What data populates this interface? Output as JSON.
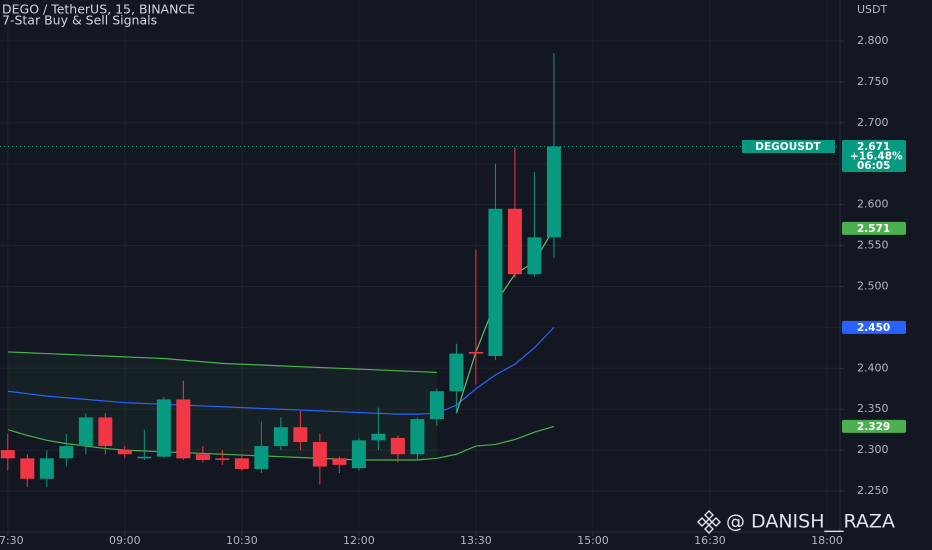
{
  "chart_data": {
    "type": "candlestick",
    "title": "DEGO / TetherUS, 15, BINANCE",
    "subtitle": "7-Star Buy & Sell Signals",
    "y_axis_label": "USDT",
    "watermark": "@ DANISH__RAZA",
    "x": [
      "07:30",
      "07:45",
      "08:00",
      "08:15",
      "08:30",
      "08:45",
      "09:00",
      "09:15",
      "09:30",
      "09:45",
      "10:00",
      "10:15",
      "10:30",
      "10:45",
      "11:00",
      "11:15",
      "11:30",
      "11:45",
      "12:00",
      "12:15",
      "12:30",
      "12:45",
      "13:00",
      "13:15",
      "13:30",
      "13:45",
      "14:00",
      "14:15",
      "14:30"
    ],
    "open": [
      2.3,
      2.29,
      2.265,
      2.29,
      2.305,
      2.34,
      2.3,
      2.29,
      2.292,
      2.362,
      2.295,
      2.29,
      2.29,
      2.277,
      2.305,
      2.328,
      2.31,
      2.29,
      2.278,
      2.312,
      2.315,
      2.295,
      2.338,
      2.372,
      2.42,
      2.415,
      2.595,
      2.515,
      2.56
    ],
    "high": [
      2.32,
      2.295,
      2.3,
      2.32,
      2.345,
      2.345,
      2.305,
      2.325,
      2.365,
      2.385,
      2.305,
      2.3,
      2.295,
      2.335,
      2.34,
      2.348,
      2.32,
      2.292,
      2.315,
      2.352,
      2.318,
      2.34,
      2.375,
      2.43,
      2.545,
      2.65,
      2.67,
      2.64,
      2.785
    ],
    "low": [
      2.275,
      2.255,
      2.255,
      2.28,
      2.295,
      2.295,
      2.29,
      2.288,
      2.29,
      2.288,
      2.285,
      2.282,
      2.275,
      2.272,
      2.3,
      2.3,
      2.258,
      2.272,
      2.275,
      2.3,
      2.285,
      2.288,
      2.33,
      2.345,
      2.38,
      2.41,
      2.51,
      2.512,
      2.535
    ],
    "close": [
      2.29,
      2.265,
      2.29,
      2.305,
      2.34,
      2.305,
      2.295,
      2.292,
      2.362,
      2.29,
      2.288,
      2.288,
      2.277,
      2.305,
      2.328,
      2.31,
      2.28,
      2.282,
      2.312,
      2.32,
      2.295,
      2.338,
      2.372,
      2.418,
      2.418,
      2.595,
      2.515,
      2.56,
      2.671
    ],
    "up_color": "#089981",
    "down_color": "#f23645",
    "lines": [
      {
        "color": "#2962ff",
        "values": [
          2.372,
          2.369,
          2.366,
          2.364,
          2.362,
          2.36,
          2.358,
          2.357,
          2.356,
          2.355,
          2.354,
          2.353,
          2.352,
          2.351,
          2.35,
          2.349,
          2.348,
          2.347,
          2.346,
          2.345,
          2.344,
          2.344,
          2.345,
          2.355,
          2.375,
          2.392,
          2.405,
          2.425,
          2.45
        ]
      },
      {
        "color": "#4caf50",
        "values": [
          2.42,
          2.419,
          2.418,
          2.417,
          2.416,
          2.415,
          2.414,
          2.413,
          2.412,
          2.41,
          2.408,
          2.406,
          2.405,
          2.404,
          2.403,
          2.402,
          2.401,
          2.4,
          2.399,
          2.398,
          2.397,
          2.396,
          2.395,
          null,
          null,
          null,
          null,
          null,
          null
        ]
      },
      {
        "color": "#4caf50",
        "values": [
          2.325,
          2.318,
          2.312,
          2.308,
          2.305,
          2.302,
          2.3,
          2.299,
          2.298,
          2.297,
          2.296,
          2.295,
          2.294,
          2.293,
          2.292,
          2.291,
          2.29,
          2.289,
          2.288,
          2.288,
          2.288,
          2.288,
          2.29,
          2.295,
          2.305,
          2.307,
          2.313,
          2.322,
          2.329
        ]
      },
      {
        "color": "#66bb6a",
        "values": [
          null,
          null,
          null,
          null,
          null,
          null,
          null,
          null,
          null,
          null,
          null,
          null,
          null,
          null,
          null,
          null,
          null,
          null,
          null,
          null,
          null,
          null,
          null,
          2.345,
          2.42,
          2.48,
          2.515,
          2.53,
          2.571
        ]
      }
    ],
    "xlim": [
      "07:24",
      "18:10"
    ],
    "xticks": [
      "07:30",
      "09:00",
      "10:30",
      "12:00",
      "13:30",
      "15:00",
      "16:30",
      "18:00"
    ],
    "ylim": [
      2.2,
      2.85
    ],
    "yticks": [
      {
        "value": 2.25,
        "label": "2.250"
      },
      {
        "value": 2.3,
        "label": "2.300"
      },
      {
        "value": 2.35,
        "label": "2.350"
      },
      {
        "value": 2.4,
        "label": "2.400"
      },
      {
        "value": 2.45,
        "label": "2.450"
      },
      {
        "value": 2.5,
        "label": "2.500"
      },
      {
        "value": 2.55,
        "label": "2.550"
      },
      {
        "value": 2.6,
        "label": "2.600"
      },
      {
        "value": 2.65,
        "label": "2.650"
      },
      {
        "value": 2.7,
        "label": "2.700"
      },
      {
        "value": 2.75,
        "label": "2.750"
      },
      {
        "value": 2.8,
        "label": "2.800"
      }
    ],
    "grid": true,
    "price_tags": [
      {
        "value": 2.571,
        "color": "#4caf50"
      },
      {
        "value": 2.45,
        "label": "2.450",
        "color": "#2962ff"
      },
      {
        "value": 2.329,
        "color": "#4caf50"
      }
    ],
    "last_price": {
      "symbol": "DEGOUSDT",
      "value": 2.671,
      "change": "+16.48%",
      "countdown": "06:05",
      "color": "#089981"
    }
  }
}
